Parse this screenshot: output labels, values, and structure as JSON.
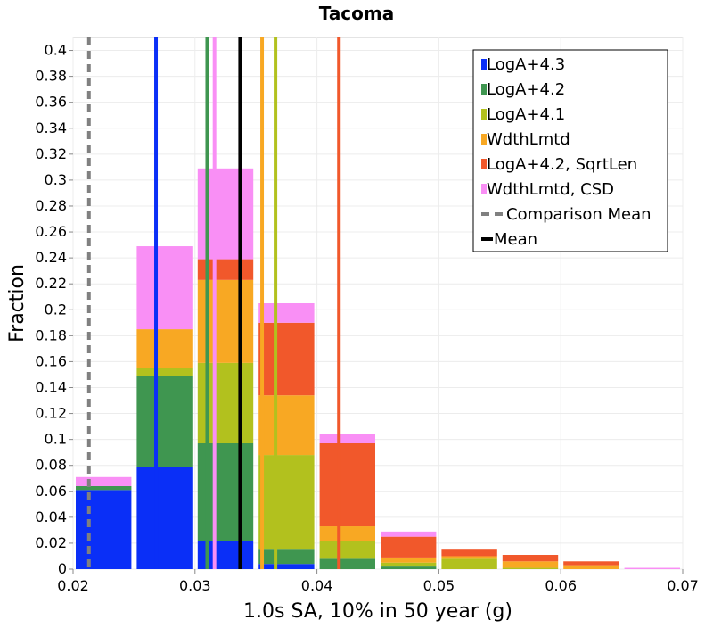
{
  "chart_data": {
    "type": "bar",
    "stacked": true,
    "title": "Tacoma",
    "xlabel": "1.0s SA, 10% in 50 year (g)",
    "ylabel": "Fraction",
    "xlim": [
      0.02,
      0.07
    ],
    "ylim": [
      0,
      0.41
    ],
    "grid": true,
    "legend_position": "top-right",
    "x_ticks": [
      "0.02",
      "0.03",
      "0.04",
      "0.05",
      "0.06",
      "0.07"
    ],
    "y_ticks": [
      "0",
      "0.02",
      "0.04",
      "0.06",
      "0.08",
      "0.1",
      "0.12",
      "0.14",
      "0.16",
      "0.18",
      "0.2",
      "0.22",
      "0.24",
      "0.26",
      "0.28",
      "0.3",
      "0.32",
      "0.34",
      "0.36",
      "0.38",
      "0.4"
    ],
    "bins": [
      {
        "from": 0.02,
        "to": 0.025
      },
      {
        "from": 0.025,
        "to": 0.03
      },
      {
        "from": 0.03,
        "to": 0.035
      },
      {
        "from": 0.035,
        "to": 0.04
      },
      {
        "from": 0.04,
        "to": 0.045
      },
      {
        "from": 0.045,
        "to": 0.05
      },
      {
        "from": 0.05,
        "to": 0.055
      },
      {
        "from": 0.055,
        "to": 0.06
      },
      {
        "from": 0.06,
        "to": 0.065
      },
      {
        "from": 0.065,
        "to": 0.07
      }
    ],
    "series": [
      {
        "name": "LogA+4.3",
        "color": "#0a2ff7",
        "mean": 0.0268,
        "values": [
          0.061,
          0.079,
          0.022,
          0.004,
          0,
          0,
          0,
          0,
          0,
          0
        ]
      },
      {
        "name": "LogA+4.2",
        "color": "#3f9650",
        "mean": 0.031,
        "values": [
          0.003,
          0.07,
          0.075,
          0.011,
          0.008,
          0.002,
          0,
          0,
          0,
          0
        ]
      },
      {
        "name": "LogA+4.1",
        "color": "#b2c11e",
        "mean": 0.0366,
        "values": [
          0,
          0.006,
          0.062,
          0.073,
          0.014,
          0.003,
          0.008,
          0.001,
          0,
          0
        ]
      },
      {
        "name": "WdthLmtd",
        "color": "#f8a823",
        "mean": 0.0355,
        "values": [
          0,
          0.03,
          0.064,
          0.046,
          0.011,
          0.004,
          0.002,
          0.005,
          0.003,
          0
        ]
      },
      {
        "name": "LogA+4.2, SqrtLen",
        "color": "#f1582b",
        "mean": 0.0418,
        "values": [
          0,
          0,
          0.016,
          0.056,
          0.064,
          0.016,
          0.005,
          0.005,
          0.003,
          0
        ]
      },
      {
        "name": "WdthLmtd, CSD",
        "color": "#f98ff5",
        "mean": 0.0316,
        "values": [
          0.007,
          0.064,
          0.07,
          0.015,
          0.007,
          0.004,
          0,
          0,
          0,
          0.001
        ]
      }
    ],
    "comparison_mean": {
      "name": "Comparison Mean",
      "x": 0.0213,
      "color": "#808080"
    },
    "overall_mean": {
      "name": "Mean",
      "x": 0.0337,
      "color": "#000000"
    }
  }
}
